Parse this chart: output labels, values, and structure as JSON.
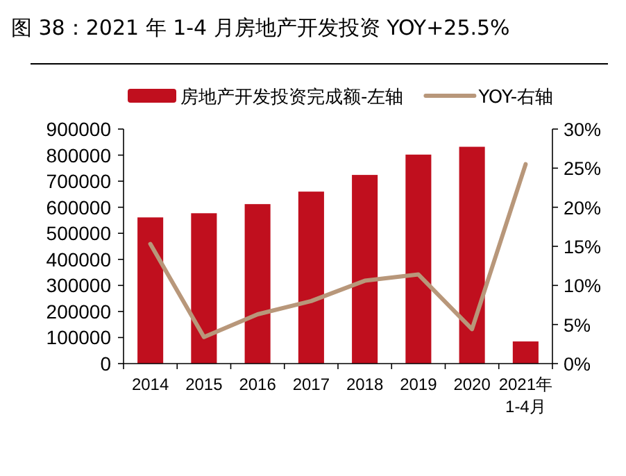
{
  "chart_data": {
    "type": "bar",
    "title": "图 38：2021 年 1-4 月房地产开发投资 YOY+25.5%",
    "categories": [
      "2014",
      "2015",
      "2016",
      "2017",
      "2018",
      "2019",
      "2020",
      "2021年\n1-4月"
    ],
    "series": [
      {
        "name": "房地产开发投资完成额-左轴",
        "color": "#c00f1e",
        "values": [
          561000,
          577000,
          612000,
          660000,
          724000,
          802000,
          832000,
          85000
        ]
      },
      {
        "name": "YOY-右轴",
        "type": "line",
        "axis": "y2",
        "color": "#b8977a",
        "values": [
          15.3,
          3.4,
          6.3,
          8.0,
          10.6,
          11.4,
          4.4,
          25.5
        ]
      }
    ],
    "ylim": [
      0,
      900000
    ],
    "yticks": [
      0,
      100000,
      200000,
      300000,
      400000,
      500000,
      600000,
      700000,
      800000,
      900000
    ],
    "y2lim": [
      0,
      30
    ],
    "y2ticks": [
      {
        "value": 0,
        "label": "0%"
      },
      {
        "value": 5,
        "label": "5%"
      },
      {
        "value": 10,
        "label": "10%"
      },
      {
        "value": 15,
        "label": "15%"
      },
      {
        "value": 20,
        "label": "20%"
      },
      {
        "value": 25,
        "label": "25%"
      },
      {
        "value": 30,
        "label": "30%"
      }
    ],
    "legend": "top",
    "grid": false,
    "marker": "none",
    "line_style": "solid"
  }
}
